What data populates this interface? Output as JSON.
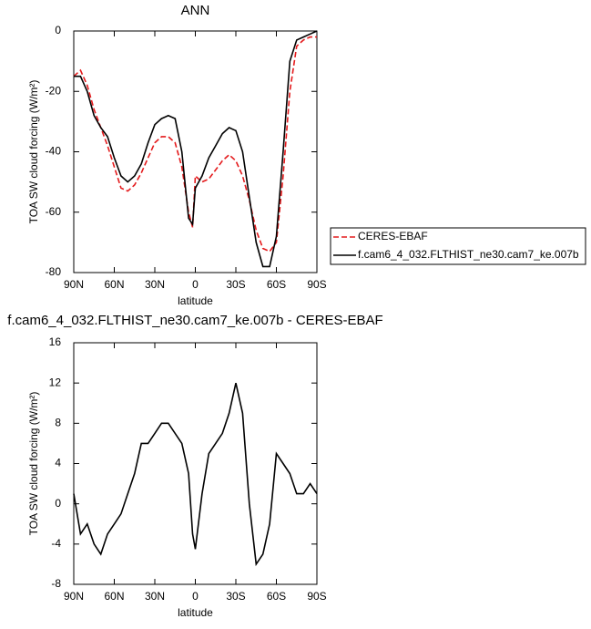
{
  "chart_data": [
    {
      "type": "line",
      "title": "ANN",
      "xlabel": "latitude",
      "ylabel": "TOA SW cloud forcing (W/m²)",
      "x": [
        90,
        85,
        80,
        75,
        70,
        65,
        60,
        55,
        50,
        45,
        40,
        35,
        30,
        25,
        20,
        15,
        10,
        5,
        2,
        0,
        -5,
        -10,
        -15,
        -20,
        -25,
        -30,
        -35,
        -40,
        -45,
        -50,
        -55,
        -60,
        -65,
        -70,
        -75,
        -80,
        -85,
        -90
      ],
      "series": [
        {
          "name": "CERES-EBAF",
          "color": "#e41a1c",
          "dash": true,
          "values": [
            -15,
            -13,
            -18,
            -26,
            -32,
            -38,
            -45,
            -52,
            -53,
            -51,
            -47,
            -42,
            -37,
            -35,
            -35,
            -37,
            -45,
            -60,
            -65,
            -48,
            -50,
            -49,
            -46,
            -43,
            -41,
            -43,
            -48,
            -56,
            -66,
            -72,
            -73,
            -70,
            -48,
            -20,
            -5,
            -3,
            -2,
            -2
          ]
        },
        {
          "name": "f.cam6_4_032.FLTHIST_ne30.cam7_ke.007b",
          "color": "#000000",
          "dash": false,
          "values": [
            -15,
            -15,
            -20,
            -28,
            -32,
            -35,
            -42,
            -48,
            -50,
            -48,
            -44,
            -37,
            -31,
            -29,
            -28,
            -29,
            -40,
            -62,
            -64,
            -52,
            -48,
            -42,
            -38,
            -34,
            -32,
            -33,
            -40,
            -55,
            -70,
            -78,
            -78,
            -68,
            -40,
            -10,
            -3,
            -2,
            -1,
            0
          ]
        }
      ],
      "xlim": [
        90,
        -90
      ],
      "xticks": [
        {
          "value": 90,
          "label": "90N"
        },
        {
          "value": 60,
          "label": "60N"
        },
        {
          "value": 30,
          "label": "30N"
        },
        0,
        {
          "value": -30,
          "label": "30S"
        },
        {
          "value": -60,
          "label": "60S"
        },
        {
          "value": -90,
          "label": "90S"
        }
      ],
      "ylim": [
        -80,
        0
      ],
      "yticks": [
        -80,
        -60,
        -40,
        -20,
        0
      ],
      "legend": "outside-right"
    },
    {
      "type": "line",
      "title": "f.cam6_4_032.FLTHIST_ne30.cam7_ke.007b - CERES-EBAF",
      "xlabel": "latitude",
      "ylabel": "TOA SW cloud forcing (W/m²)",
      "x": [
        90,
        85,
        80,
        75,
        70,
        65,
        60,
        55,
        50,
        45,
        40,
        35,
        30,
        25,
        20,
        15,
        10,
        5,
        2,
        0,
        -5,
        -10,
        -15,
        -20,
        -25,
        -30,
        -35,
        -40,
        -45,
        -50,
        -55,
        -60,
        -65,
        -70,
        -75,
        -80,
        -85,
        -90
      ],
      "series": [
        {
          "color": "#000000",
          "dash": false,
          "values": [
            1,
            -3,
            -2,
            -4,
            -5,
            -3,
            -2,
            -1,
            1,
            3,
            6,
            6,
            7,
            8,
            8,
            7,
            6,
            3,
            -3,
            -4.5,
            1,
            5,
            6,
            7,
            9,
            12,
            9,
            0,
            -6,
            -5,
            -2,
            5,
            4,
            3,
            1,
            1,
            2,
            1
          ]
        }
      ],
      "xlim": [
        90,
        -90
      ],
      "xticks": [
        {
          "value": 90,
          "label": "90N"
        },
        {
          "value": 60,
          "label": "60N"
        },
        {
          "value": 30,
          "label": "30N"
        },
        0,
        {
          "value": -30,
          "label": "30S"
        },
        {
          "value": -60,
          "label": "60S"
        },
        {
          "value": -90,
          "label": "90S"
        }
      ],
      "ylim": [
        -8,
        16
      ],
      "yticks": [
        -8,
        -4,
        0,
        4,
        8,
        12,
        16
      ]
    }
  ]
}
